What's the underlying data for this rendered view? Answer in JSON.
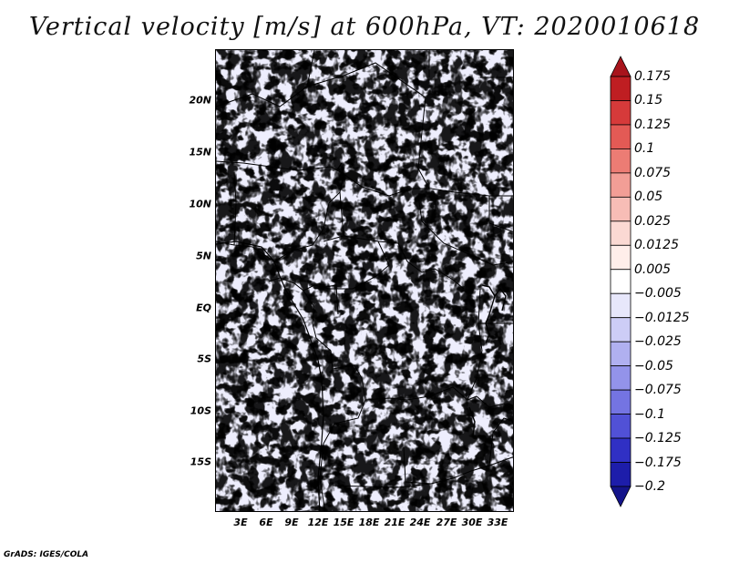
{
  "title": "Vertical velocity [m/s] at 600hPa, VT: 2020010618",
  "credit": "GrADS: IGES/COLA",
  "map": {
    "variable": "Vertical velocity",
    "units": "m/s",
    "level": "600hPa",
    "valid_time": "2020010618",
    "lat_ticks": [
      "20N",
      "15N",
      "10N",
      "5N",
      "EQ",
      "5S",
      "10S",
      "15S"
    ],
    "lon_ticks": [
      "3E",
      "6E",
      "9E",
      "12E",
      "15E",
      "18E",
      "21E",
      "24E",
      "27E",
      "30E",
      "33E"
    ]
  },
  "colorbar": {
    "labels": [
      "0.175",
      "0.15",
      "0.125",
      "0.1",
      "0.075",
      "0.05",
      "0.025",
      "0.0125",
      "0.005",
      "−0.005",
      "−0.0125",
      "−0.025",
      "−0.05",
      "−0.075",
      "−0.1",
      "−0.125",
      "−0.175",
      "−0.2"
    ],
    "colors": [
      "#a8141c",
      "#bf1e22",
      "#d63a3a",
      "#e35a55",
      "#ec7c74",
      "#f29e96",
      "#f7bdb6",
      "#fbd9d3",
      "#ffeeea",
      "#ffffff",
      "#e7e7fb",
      "#cdcdf6",
      "#b0b0f0",
      "#9393ea",
      "#7474e2",
      "#5151d6",
      "#3030c4",
      "#1d1daa",
      "#14148a"
    ]
  }
}
